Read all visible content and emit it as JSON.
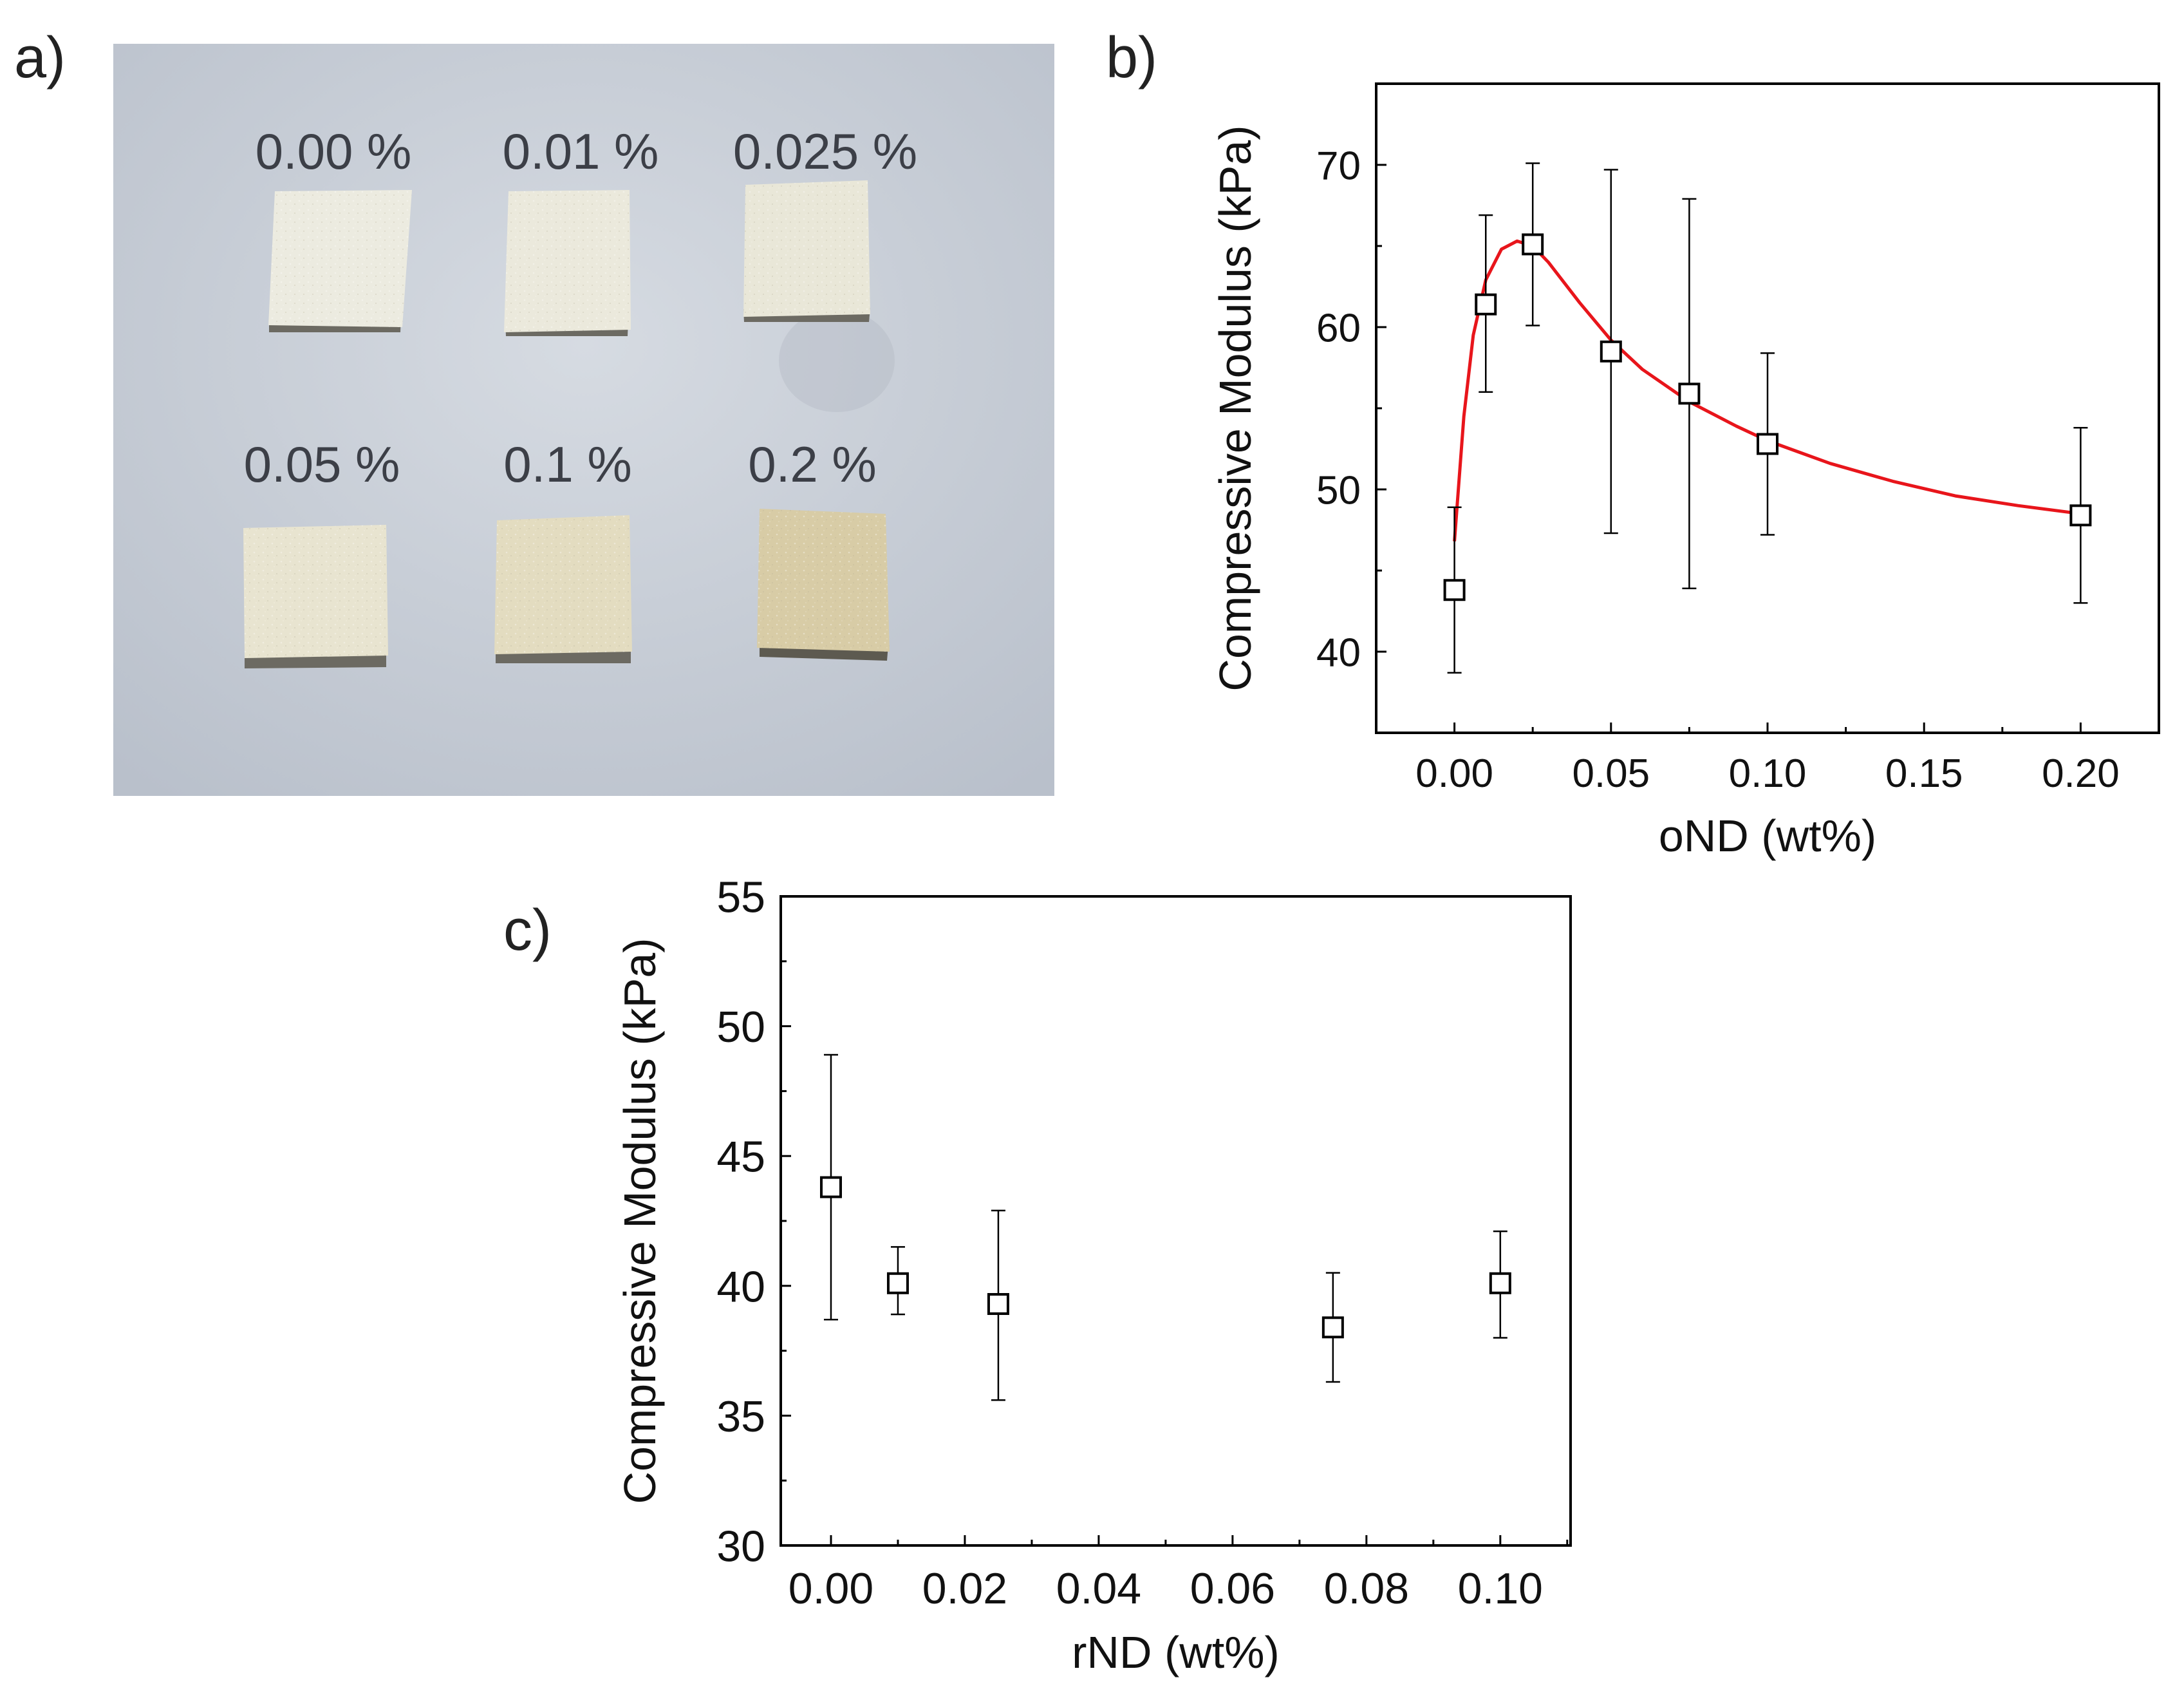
{
  "panel_labels": {
    "a": "a)",
    "b": "b)",
    "c": "c)"
  },
  "photo": {
    "samples": [
      {
        "label": "0.00 %",
        "color": "#ecebe0"
      },
      {
        "label": "0.01 %",
        "color": "#ebe9dc"
      },
      {
        "label": "0.025 %",
        "color": "#e9e7d8"
      },
      {
        "label": "0.05 %",
        "color": "#e8e4d0"
      },
      {
        "label": "0.1 %",
        "color": "#e3dcc0"
      },
      {
        "label": "0.2 %",
        "color": "#d8cca6"
      }
    ],
    "background_color": "#c9cfd8"
  },
  "chart_data": [
    {
      "id": "b",
      "type": "scatter",
      "title": "",
      "xlabel": "oND (wt%)",
      "ylabel": "Compressive Modulus (kPa)",
      "xlim": [
        -0.025,
        0.225
      ],
      "ylim": [
        35,
        75
      ],
      "xticks": [
        0.0,
        0.05,
        0.1,
        0.15,
        0.2
      ],
      "xtick_labels": [
        "0.00",
        "0.05",
        "0.10",
        "0.15",
        "0.20"
      ],
      "yticks": [
        40,
        50,
        60,
        70
      ],
      "ytick_labels": [
        "40",
        "50",
        "60",
        "70"
      ],
      "series": [
        {
          "name": "oND",
          "marker": "open-square",
          "x": [
            0.0,
            0.01,
            0.025,
            0.05,
            0.075,
            0.1,
            0.2
          ],
          "y": [
            43.8,
            61.4,
            65.1,
            58.5,
            55.9,
            52.8,
            48.4
          ],
          "yerr_low": [
            38.7,
            56.0,
            60.1,
            47.3,
            43.9,
            47.2,
            43.0
          ],
          "yerr_high": [
            48.9,
            66.9,
            70.1,
            69.7,
            67.9,
            58.4,
            53.8
          ]
        }
      ],
      "fit": {
        "color": "#e8151b",
        "x": [
          0.0,
          0.003,
          0.006,
          0.01,
          0.015,
          0.02,
          0.025,
          0.03,
          0.04,
          0.05,
          0.06,
          0.075,
          0.09,
          0.1,
          0.12,
          0.14,
          0.16,
          0.18,
          0.2
        ],
        "y": [
          46.8,
          54.5,
          59.5,
          62.9,
          64.8,
          65.3,
          65.0,
          64.0,
          61.5,
          59.2,
          57.4,
          55.4,
          53.9,
          53.0,
          51.6,
          50.5,
          49.6,
          49.0,
          48.5
        ]
      }
    },
    {
      "id": "c",
      "type": "scatter",
      "title": "",
      "xlabel": "rND (wt%)",
      "ylabel": "Compressive Modulus (kPa)",
      "xlim": [
        -0.0075,
        0.1105
      ],
      "ylim": [
        30,
        55
      ],
      "xticks": [
        0.0,
        0.02,
        0.04,
        0.06,
        0.08,
        0.1
      ],
      "xtick_labels": [
        "0.00",
        "0.02",
        "0.04",
        "0.06",
        "0.08",
        "0.10"
      ],
      "yticks": [
        30,
        35,
        40,
        45,
        50,
        55
      ],
      "ytick_labels": [
        "30",
        "35",
        "40",
        "45",
        "50",
        "55"
      ],
      "series": [
        {
          "name": "rND",
          "marker": "open-square",
          "x": [
            0.0,
            0.01,
            0.025,
            0.075,
            0.1
          ],
          "y": [
            43.8,
            40.1,
            39.3,
            38.4,
            40.1
          ],
          "yerr_low": [
            38.7,
            38.9,
            35.6,
            36.3,
            38.0
          ],
          "yerr_high": [
            48.9,
            41.5,
            42.9,
            40.5,
            42.1
          ]
        }
      ]
    }
  ]
}
